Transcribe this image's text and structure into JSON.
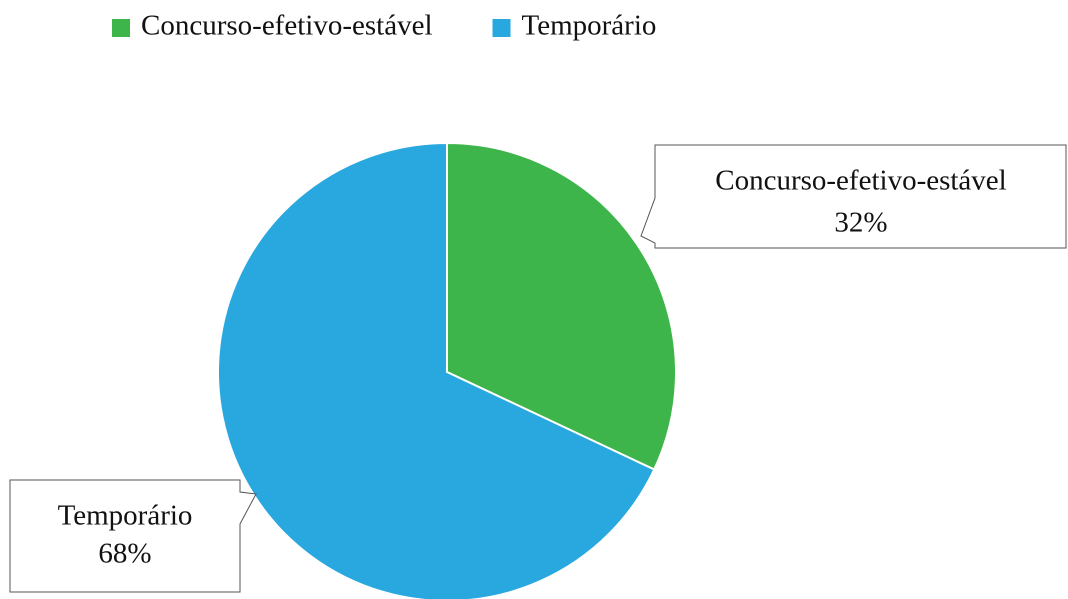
{
  "chart_data": {
    "type": "pie",
    "categories": [
      "Concurso-efetivo-estável",
      "Temporário"
    ],
    "values": [
      32,
      68
    ],
    "value_labels": [
      "32%",
      "68%"
    ],
    "colors": [
      "#3db54a",
      "#29a8e0"
    ],
    "legend": "top"
  }
}
